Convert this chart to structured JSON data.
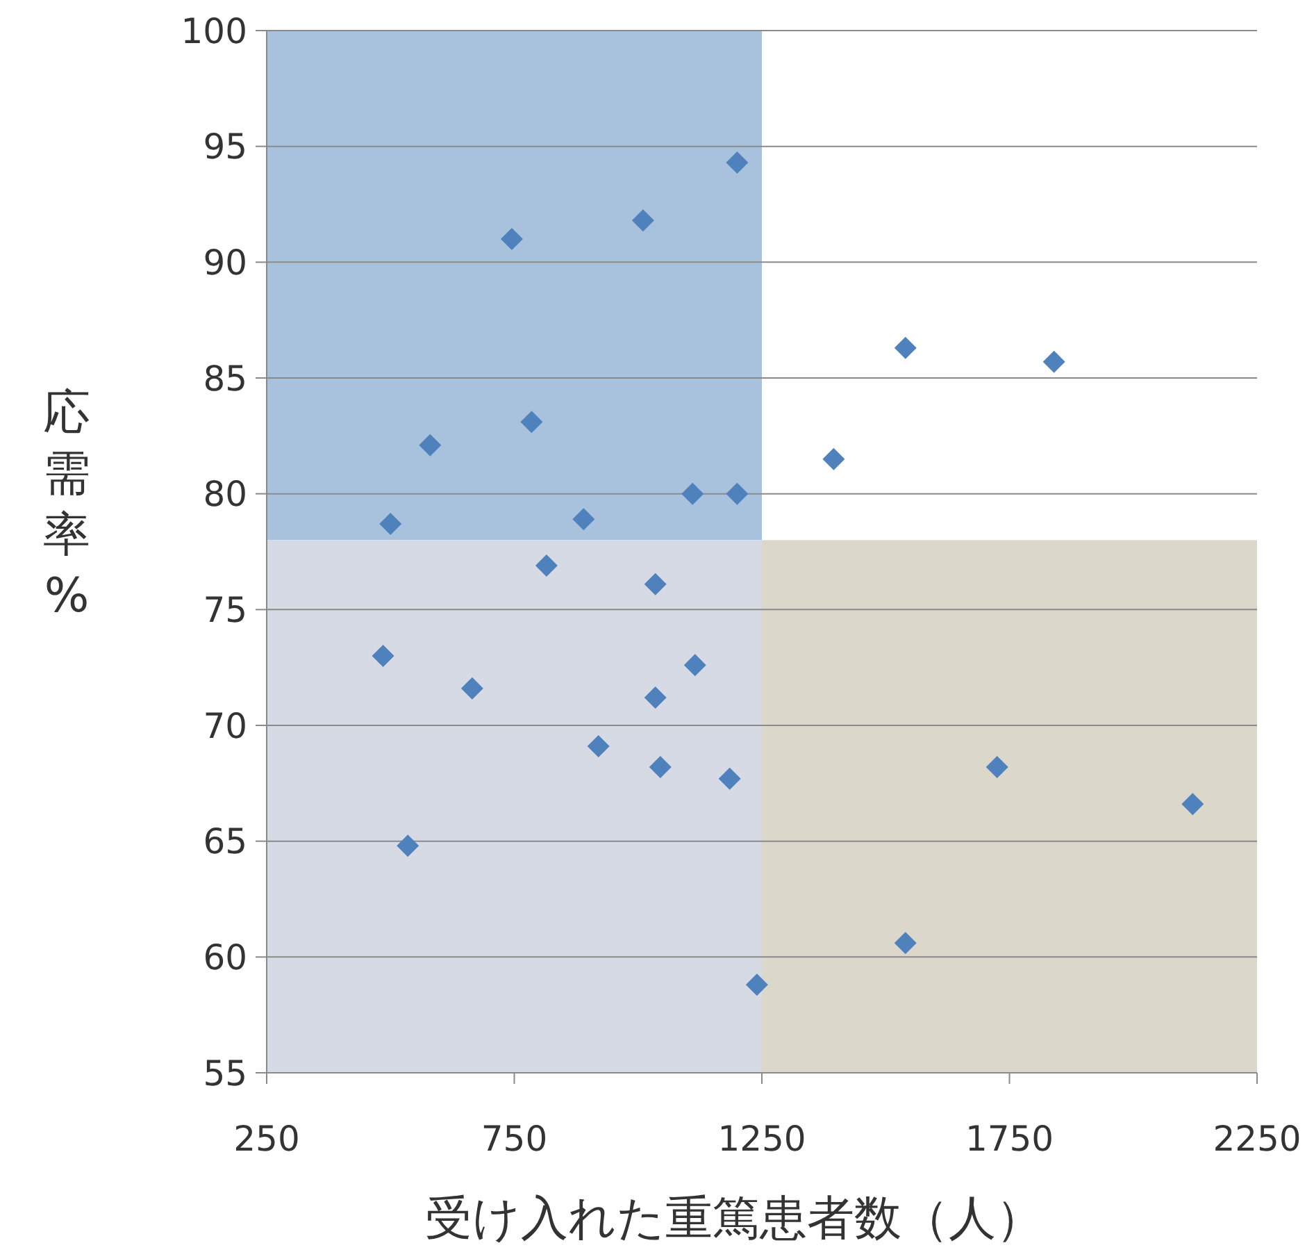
{
  "chart_data": {
    "type": "scatter",
    "xlabel": "受け入れた重篤患者数（人）",
    "ylabel": "応需率%",
    "xlim": [
      250,
      2250
    ],
    "xticks": [
      250,
      750,
      1250,
      1750,
      2250
    ],
    "ylim": [
      55,
      100
    ],
    "yticks": [
      55,
      60,
      65,
      70,
      75,
      80,
      85,
      90,
      95,
      100
    ],
    "grid": "y",
    "marker": "diamond",
    "series": [
      {
        "color": "#4f81bd",
        "x": [
          1200,
          1010,
          745,
          1540,
          1840,
          785,
          580,
          1395,
          1110,
          1200,
          500,
          890,
          815,
          1035,
          485,
          1115,
          665,
          1035,
          920,
          1045,
          1725,
          1185,
          2120,
          535,
          1540,
          1240
        ],
        "values": [
          94.3,
          91.8,
          91.0,
          86.3,
          85.7,
          83.1,
          82.1,
          81.5,
          80.0,
          80.0,
          78.7,
          78.9,
          76.9,
          76.1,
          73.0,
          72.6,
          71.6,
          71.2,
          69.1,
          68.2,
          68.2,
          67.7,
          66.6,
          64.8,
          60.6,
          58.8
        ]
      }
    ]
  }
}
